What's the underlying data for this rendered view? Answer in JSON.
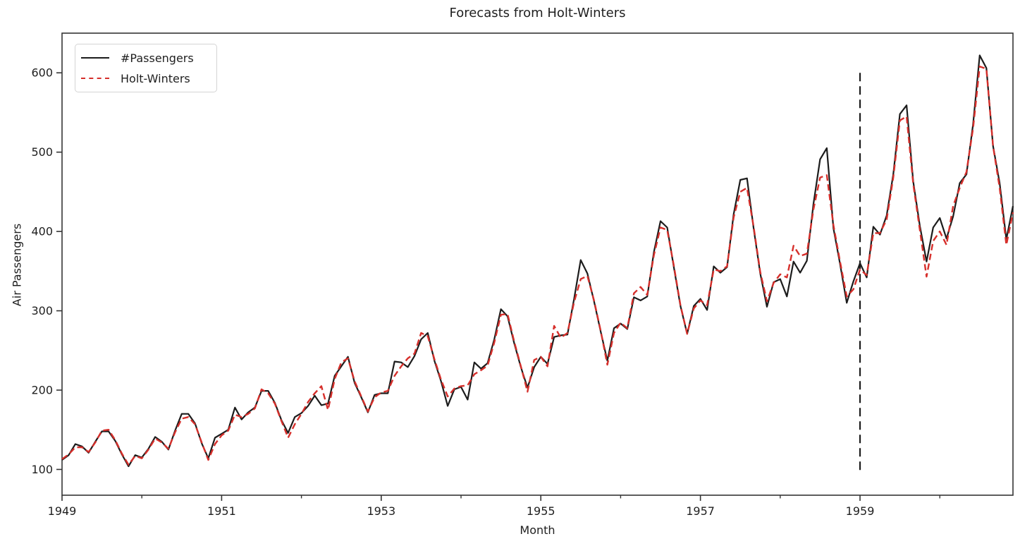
{
  "figure": {
    "title": "Forecasts from Holt-Winters"
  },
  "legend": {
    "position": "upper-left",
    "items": [
      {
        "label": "#Passengers",
        "color": "#1c1c1c",
        "style": "solid"
      },
      {
        "label": "Holt-Winters",
        "color": "#d62f2b",
        "style": "dashed"
      }
    ]
  },
  "chart_data": {
    "type": "line",
    "title": "Forecasts from Holt-Winters",
    "xlabel": "Month",
    "ylabel": "Air Passengers",
    "x_start_year": 1949,
    "months": 144,
    "xlim_years": [
      1949.0,
      1960.917
    ],
    "ylim": [
      67.5,
      650
    ],
    "y_ticks": [
      100,
      200,
      300,
      400,
      500,
      600
    ],
    "x_major_tick_years": [
      1949,
      1951,
      1953,
      1955,
      1957,
      1959
    ],
    "x_minor_tick_years": [
      1950,
      1952,
      1954,
      1956,
      1958,
      1960
    ],
    "grid": false,
    "legend_position": "upper-left",
    "vline": {
      "x_year": 1959.0,
      "y_from": 94,
      "y_to": 600,
      "style": "dashed",
      "color": "#1c1c1c"
    },
    "series": [
      {
        "name": "#Passengers",
        "color": "#1c1c1c",
        "style": "solid",
        "values": [
          112,
          118,
          132,
          129,
          121,
          135,
          148,
          148,
          136,
          119,
          104,
          118,
          115,
          126,
          141,
          135,
          125,
          149,
          170,
          170,
          158,
          133,
          114,
          140,
          145,
          150,
          178,
          163,
          172,
          178,
          199,
          199,
          184,
          162,
          146,
          166,
          171,
          180,
          193,
          181,
          183,
          218,
          230,
          242,
          209,
          191,
          172,
          194,
          196,
          196,
          236,
          235,
          229,
          243,
          264,
          272,
          237,
          211,
          180,
          201,
          204,
          188,
          235,
          227,
          234,
          264,
          302,
          293,
          259,
          229,
          203,
          229,
          242,
          233,
          267,
          269,
          270,
          315,
          364,
          347,
          312,
          274,
          237,
          278,
          284,
          277,
          317,
          313,
          318,
          374,
          413,
          405,
          355,
          306,
          271,
          306,
          315,
          301,
          356,
          348,
          355,
          422,
          465,
          467,
          404,
          347,
          305,
          336,
          340,
          318,
          362,
          348,
          363,
          435,
          491,
          505,
          404,
          359,
          310,
          337,
          360,
          342,
          406,
          396,
          420,
          472,
          548,
          559,
          463,
          407,
          362,
          405,
          417,
          391,
          419,
          461,
          472,
          535,
          622,
          606,
          508,
          461,
          390,
          432
        ]
      },
      {
        "name": "Holt-Winters",
        "color": "#d62f2b",
        "style": "dashed",
        "values": [
          113,
          119,
          128,
          128,
          122,
          134,
          149,
          150,
          137,
          120,
          106,
          117,
          114,
          125,
          139,
          134,
          126,
          147,
          164,
          166,
          157,
          134,
          112,
          132,
          143,
          149,
          169,
          166,
          170,
          177,
          201,
          196,
          183,
          161,
          140,
          157,
          170,
          185,
          196,
          205,
          175,
          214,
          235,
          240,
          211,
          192,
          173,
          191,
          197,
          199,
          218,
          230,
          240,
          246,
          272,
          268,
          239,
          213,
          192,
          202,
          205,
          206,
          220,
          225,
          231,
          260,
          295,
          296,
          261,
          230,
          198,
          238,
          242,
          230,
          281,
          266,
          272,
          311,
          340,
          344,
          313,
          275,
          232,
          272,
          285,
          278,
          322,
          330,
          320,
          370,
          405,
          402,
          357,
          307,
          271,
          303,
          313,
          307,
          352,
          350,
          356,
          418,
          450,
          455,
          406,
          349,
          312,
          335,
          346,
          342,
          382,
          369,
          372,
          428,
          468,
          471,
          408,
          362,
          318,
          327,
          352,
          345,
          398,
          398,
          415,
          468,
          540,
          545,
          460,
          402,
          343,
          388,
          400,
          383,
          432,
          455,
          475,
          530,
          608,
          605,
          508,
          455,
          383,
          424
        ]
      }
    ]
  }
}
